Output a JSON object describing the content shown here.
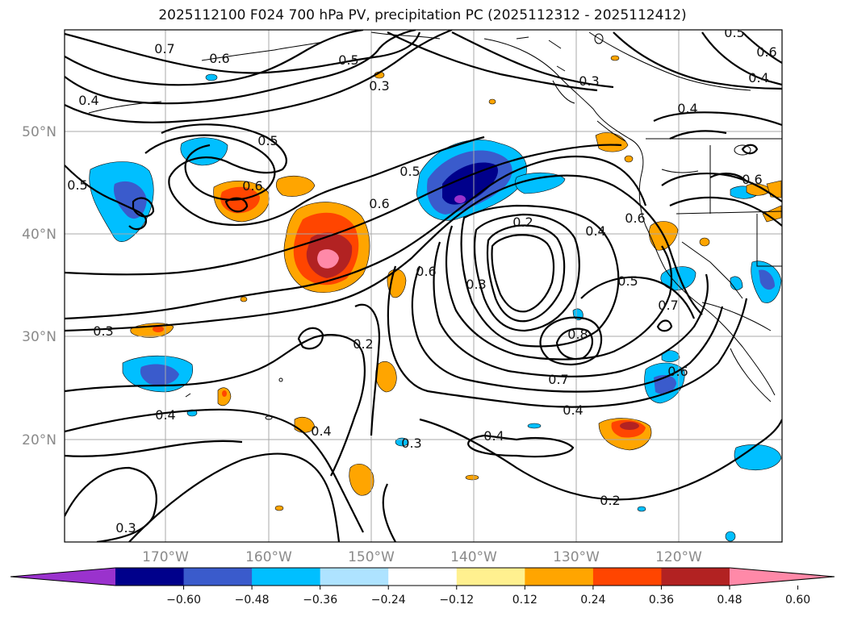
{
  "title": "2025112100 F024 700 hPa PV, precipitation PC (2025112312 - 2025112412)",
  "lat_labels": [
    "50°N",
    "40°N",
    "30°N",
    "20°N"
  ],
  "lon_labels": [
    "170°W",
    "160°W",
    "150°W",
    "140°W",
    "130°W",
    "120°W"
  ],
  "colorbar": {
    "colors": [
      "#9a32cd",
      "#00008b",
      "#3a5bcc",
      "#00bfff",
      "#aee3ff",
      "#ffffff",
      "#fff08f",
      "#ffa500",
      "#ff4500",
      "#b22222",
      "#ff89a8"
    ],
    "ticks": [
      "−0.60",
      "−0.48",
      "−0.36",
      "−0.24",
      "−0.12",
      "0.12",
      "0.24",
      "0.36",
      "0.48",
      "0.60"
    ]
  },
  "contour_labels": [
    "0.6",
    "0.5",
    "0.3",
    "0.4",
    "0.5",
    "0.6",
    "0.2",
    "0.4",
    "0.6",
    "0.5",
    "0.7",
    "0.6",
    "0.3",
    "0.8",
    "0.7",
    "0.4",
    "0.3",
    "0.4",
    "0.2",
    "0.3",
    "0.4",
    "0.2",
    "0.3",
    "0.4",
    "0.4",
    "0.5",
    "0.6",
    "0.6",
    "0.5",
    "0.6",
    "0.7",
    "0.4",
    "0.3",
    "0.6",
    "0.5"
  ]
}
